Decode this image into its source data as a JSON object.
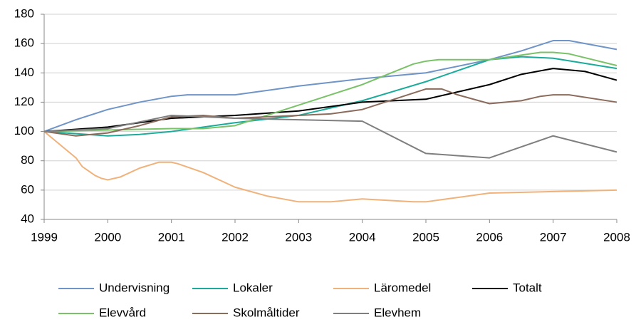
{
  "chart_data": {
    "type": "line",
    "xlim": [
      1999,
      2008
    ],
    "xticks": [
      1999,
      2000,
      2001,
      2002,
      2003,
      2004,
      2005,
      2006,
      2007,
      2008
    ],
    "ylim": [
      40,
      180
    ],
    "yticks": [
      40,
      60,
      80,
      100,
      120,
      140,
      160,
      180
    ],
    "grid": true,
    "series": [
      {
        "name": "Undervisning",
        "color": "#6f94c7",
        "x": [
          1999,
          1999.5,
          2000,
          2000.5,
          2001,
          2001.25,
          2002,
          2003,
          2004,
          2005,
          2006,
          2006.5,
          2007,
          2007.25,
          2008
        ],
        "values": [
          100,
          108,
          115,
          120,
          124,
          125,
          125,
          131,
          136,
          140,
          149,
          155,
          162,
          162,
          156
        ]
      },
      {
        "name": "Lokaler",
        "color": "#1aab9b",
        "x": [
          1999,
          2000,
          2000.5,
          2001,
          2002,
          2003,
          2004,
          2005,
          2006,
          2006.5,
          2007,
          2008
        ],
        "values": [
          100,
          97,
          98,
          100,
          106,
          111,
          121,
          134,
          149,
          151,
          150,
          143
        ]
      },
      {
        "name": "Läromedel",
        "color": "#f0b27a",
        "x": [
          1999,
          1999.25,
          1999.5,
          1999.6,
          1999.8,
          1999.9,
          2000,
          2000.2,
          2000.5,
          2000.8,
          2001,
          2001.1,
          2001.5,
          2002,
          2002.5,
          2003,
          2003.5,
          2004,
          2004.8,
          2005,
          2006,
          2007,
          2008
        ],
        "values": [
          100,
          91,
          82,
          76,
          70,
          68,
          67,
          69,
          75,
          79,
          79,
          78,
          72,
          62,
          56,
          52,
          52,
          54,
          52,
          52,
          58,
          59,
          60
        ]
      },
      {
        "name": "Totalt",
        "color": "#000000",
        "x": [
          1999,
          2000,
          2001,
          2002,
          2003,
          2004,
          2005,
          2005.5,
          2006,
          2006.5,
          2007,
          2007.5,
          2008
        ],
        "values": [
          100,
          103,
          109,
          111,
          114,
          120,
          122,
          127,
          132,
          139,
          143,
          141,
          135
        ]
      },
      {
        "name": "Elevvård",
        "color": "#79c267",
        "x": [
          1999,
          2000,
          2001,
          2001.5,
          2002,
          2003,
          2004,
          2004.8,
          2005,
          2005.2,
          2006,
          2006.8,
          2007,
          2007.25,
          2008
        ],
        "values": [
          100,
          101,
          102,
          102,
          104,
          118,
          132,
          146,
          148,
          149,
          149,
          154,
          154,
          153,
          145
        ]
      },
      {
        "name": "Skolmåltider",
        "color": "#8b6c5c",
        "x": [
          1999,
          1999.5,
          2000,
          2000.5,
          2001,
          2001.5,
          2002,
          2003,
          2003.5,
          2004,
          2004.5,
          2005,
          2005.25,
          2005.5,
          2006,
          2006.5,
          2006.8,
          2007,
          2007.25,
          2008
        ],
        "values": [
          100,
          97,
          99,
          104,
          110,
          111,
          109,
          111,
          112,
          115,
          122,
          129,
          129,
          125,
          119,
          121,
          124,
          125,
          125,
          120
        ]
      },
      {
        "name": "Elevhem",
        "color": "#7f7f7f",
        "x": [
          1999,
          2000,
          2001,
          2002,
          2003,
          2004,
          2005,
          2006,
          2007,
          2008
        ],
        "values": [
          100,
          102,
          111,
          109,
          108,
          107,
          85,
          82,
          97,
          86
        ]
      }
    ]
  }
}
